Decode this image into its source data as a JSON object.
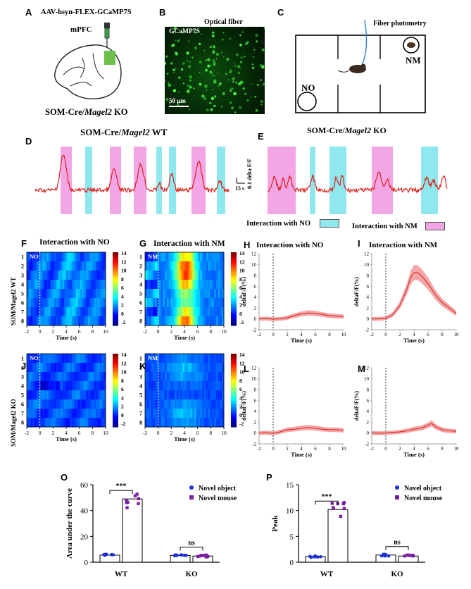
{
  "panels": {
    "A": {
      "label": "A",
      "virus": "AAV-hsyn-FLEX-GCaMP7S",
      "region": "mPFC",
      "caption_pre": "SOM-Cre/",
      "caption_it": "Magel2",
      "caption_post": " KO"
    },
    "B": {
      "label": "B",
      "title": "Optical fiber",
      "inner": "GCaMP7S",
      "scale": "50 µm"
    },
    "C": {
      "label": "C",
      "fiber": "Fiber photometry",
      "no": "NO",
      "nm": "NM"
    },
    "D": {
      "label": "D",
      "title_pre": "SOM-Cre/",
      "title_it": "Magel2",
      "title_post": " WT",
      "scale_x": "15 s"
    },
    "E": {
      "label": "E",
      "title_pre": "SOM-Cre/",
      "title_it": "Magel2",
      "title_post": " KO",
      "scale_y": "0.1 delta F/F",
      "legend_no": "Interaction with NO",
      "legend_nm": "Interaction with NM"
    },
    "F": {
      "label": "F",
      "title": "Interaction with NO",
      "tag": "NO"
    },
    "G": {
      "label": "G",
      "title": "Interaction with NM",
      "tag": "NM"
    },
    "H": {
      "label": "H",
      "title": "Interaction with NO"
    },
    "I": {
      "label": "I",
      "title": "Interaction with NM"
    },
    "J": {
      "label": "J",
      "tag": "NO"
    },
    "K": {
      "label": "K",
      "tag": "NM"
    },
    "L": {
      "label": "L"
    },
    "M": {
      "label": "M"
    },
    "O": {
      "label": "O",
      "ylabel": "Area under the curve"
    },
    "P": {
      "label": "P",
      "ylabel": "Peak"
    }
  },
  "row_label_wt": "SOM/Magel2 WT",
  "row_label_ko": "SOM/Magel2 KO",
  "time_label": "Time (s)",
  "dff_label": "deltaF/F(%)",
  "heatmap_rows": [
    "1",
    "2",
    "3",
    "4",
    "5",
    "6",
    "7",
    "8"
  ],
  "colorbar_ticks": [
    "14",
    "12",
    "10",
    "8",
    "6",
    "4",
    "2",
    "0",
    "-2"
  ],
  "colors": {
    "nm": "#f2a6e6",
    "no": "#8ee8ee",
    "trace": "#e0201a",
    "purple": "#7a1fa2",
    "blue": "#1f2fd6"
  },
  "chart_data": [
    {
      "type": "line",
      "id": "H",
      "title": "Interaction with NO",
      "xlabel": "Time (s)",
      "ylabel": "deltaF/F(%)",
      "xlim": [
        -2,
        10
      ],
      "ylim": [
        -2,
        12
      ],
      "xticks": [
        "-2",
        "0",
        "2",
        "4",
        "6",
        "8",
        "10"
      ],
      "yticks": [
        "12",
        "10",
        "8",
        "6",
        "4",
        "2",
        "0",
        "-2"
      ],
      "x": [
        -2,
        -1,
        0,
        1,
        2,
        3,
        4,
        5,
        6,
        7,
        8,
        9,
        10
      ],
      "y": [
        0,
        0.05,
        -0.05,
        0,
        0.2,
        0.6,
        0.9,
        1.1,
        1.0,
        0.8,
        0.6,
        0.5,
        0.4
      ]
    },
    {
      "type": "line",
      "id": "I",
      "title": "Interaction with NM",
      "xlabel": "Time (s)",
      "ylabel": "deltaF/F(%)",
      "xlim": [
        -2,
        10
      ],
      "ylim": [
        -2,
        12
      ],
      "xticks": [
        "-2",
        "0",
        "2",
        "4",
        "6",
        "8",
        "10"
      ],
      "yticks": [
        "12",
        "10",
        "8",
        "6",
        "4",
        "2",
        "0",
        "-2"
      ],
      "x": [
        -2,
        -1,
        0,
        1,
        2,
        3,
        3.5,
        4,
        4.5,
        5,
        6,
        7,
        8,
        9,
        10
      ],
      "y": [
        0,
        0,
        0.1,
        0.8,
        2.5,
        5.5,
        7.5,
        8.5,
        8.5,
        8,
        6.5,
        4.5,
        3,
        2,
        1
      ]
    },
    {
      "type": "line",
      "id": "L",
      "xlabel": "Time (s)",
      "ylabel": "deltaF/F(%)",
      "xlim": [
        -2,
        10
      ],
      "ylim": [
        -2,
        12
      ],
      "xticks": [
        "-2",
        "0",
        "2",
        "4",
        "6",
        "8",
        "10"
      ],
      "yticks": [
        "12",
        "10",
        "8",
        "6",
        "4",
        "2",
        "0",
        "-2"
      ],
      "x": [
        -2,
        -1,
        0,
        1,
        2,
        3,
        4,
        5,
        6,
        7,
        8,
        9,
        10
      ],
      "y": [
        0,
        0.05,
        -0.05,
        0.2,
        0.6,
        0.7,
        0.9,
        1.0,
        0.9,
        0.7,
        0.6,
        0.6,
        0.5
      ]
    },
    {
      "type": "line",
      "id": "M",
      "xlabel": "Time (s)",
      "ylabel": "deltaF/F(%)",
      "xlim": [
        -2,
        10
      ],
      "ylim": [
        -2,
        12
      ],
      "xticks": [
        "-2",
        "0",
        "2",
        "4",
        "6",
        "8",
        "10"
      ],
      "yticks": [
        "12",
        "10",
        "8",
        "6",
        "4",
        "2",
        "0",
        "-2"
      ],
      "x": [
        -2,
        -1,
        0,
        1,
        2,
        3,
        4,
        5,
        6,
        6.5,
        7,
        8,
        9,
        10
      ],
      "y": [
        0,
        -0.05,
        0,
        0.1,
        0.2,
        0.4,
        0.7,
        0.9,
        1.4,
        1.8,
        1.2,
        0.6,
        0.4,
        0.3
      ]
    },
    {
      "type": "bar",
      "id": "O",
      "ylabel": "Area under the curve",
      "categories": [
        "WT",
        "KO"
      ],
      "ylim": [
        0,
        60
      ],
      "yticks": [
        "0",
        "20",
        "40",
        "60"
      ],
      "legend": [
        "Novel object",
        "Novel mouse"
      ],
      "significance": [
        "***",
        "ns"
      ],
      "series": [
        {
          "name": "Novel object",
          "values": [
            5.5,
            5.2
          ]
        },
        {
          "name": "Novel mouse",
          "values": [
            49,
            4.8
          ]
        }
      ]
    },
    {
      "type": "bar",
      "id": "P",
      "ylabel": "Peak",
      "categories": [
        "WT",
        "KO"
      ],
      "ylim": [
        0,
        15
      ],
      "yticks": [
        "0",
        "5",
        "10",
        "15"
      ],
      "legend": [
        "Novel object",
        "Novel mouse"
      ],
      "significance": [
        "***",
        "ns"
      ],
      "series": [
        {
          "name": "Novel object",
          "values": [
            1.1,
            1.4
          ]
        },
        {
          "name": "Novel mouse",
          "values": [
            10.2,
            1.2
          ]
        }
      ]
    }
  ]
}
